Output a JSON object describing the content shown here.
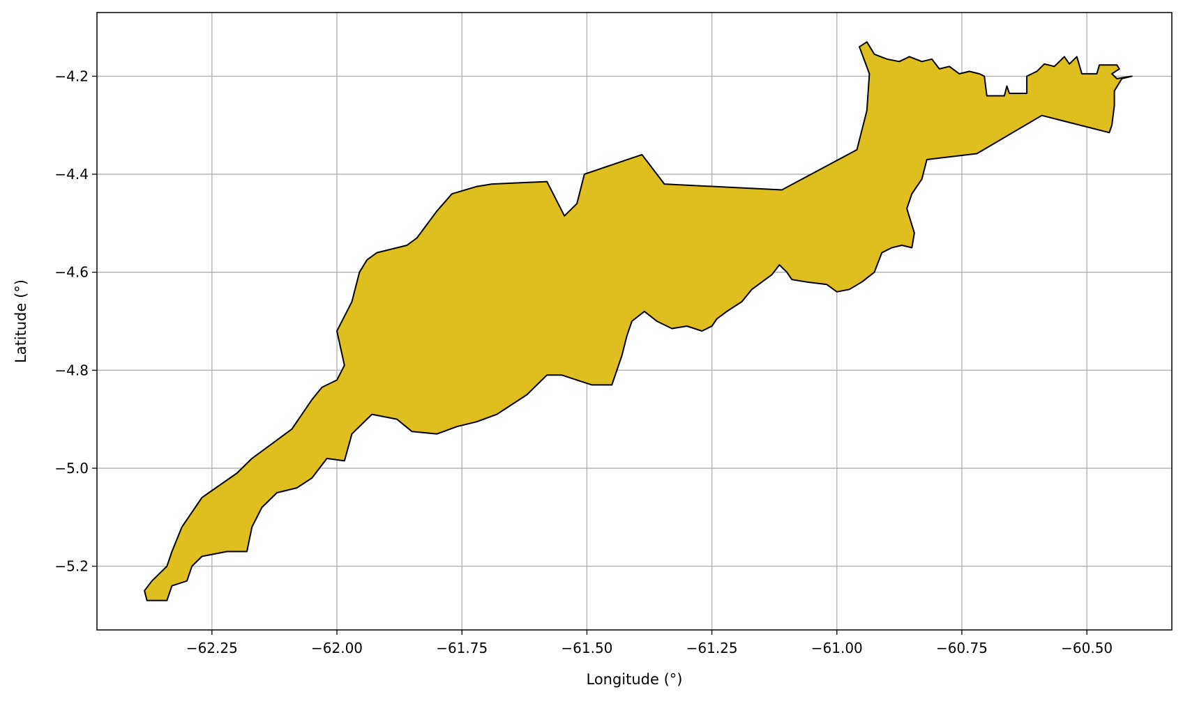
{
  "chart_data": {
    "type": "map",
    "xlabel": "Longitude (°)",
    "ylabel": "Latitude (°)",
    "xlim": [
      -62.48,
      -60.33
    ],
    "ylim": [
      -5.33,
      -4.07
    ],
    "grid": true,
    "colors": {
      "fill": "#dfbe20",
      "edge": "#000000",
      "grid": "#b0b0b0"
    },
    "x_ticks": [
      {
        "value": -62.25,
        "label": "−62.25"
      },
      {
        "value": -62.0,
        "label": "−62.00"
      },
      {
        "value": -61.75,
        "label": "−61.75"
      },
      {
        "value": -61.5,
        "label": "−61.50"
      },
      {
        "value": -61.25,
        "label": "−61.25"
      },
      {
        "value": -61.0,
        "label": "−61.00"
      },
      {
        "value": -60.75,
        "label": "−60.75"
      },
      {
        "value": -60.5,
        "label": "−60.50"
      }
    ],
    "y_ticks": [
      {
        "value": -4.2,
        "label": "−4.2"
      },
      {
        "value": -4.4,
        "label": "−4.4"
      },
      {
        "value": -4.6,
        "label": "−4.6"
      },
      {
        "value": -4.8,
        "label": "−4.8"
      },
      {
        "value": -5.0,
        "label": "−5.0"
      },
      {
        "value": -5.2,
        "label": "−5.2"
      }
    ],
    "polygon": [
      [
        -62.34,
        -5.27
      ],
      [
        -62.38,
        -5.27
      ],
      [
        -62.385,
        -5.25
      ],
      [
        -62.37,
        -5.23
      ],
      [
        -62.34,
        -5.2
      ],
      [
        -62.33,
        -5.17
      ],
      [
        -62.31,
        -5.12
      ],
      [
        -62.27,
        -5.06
      ],
      [
        -62.2,
        -5.01
      ],
      [
        -62.17,
        -4.98
      ],
      [
        -62.13,
        -4.95
      ],
      [
        -62.09,
        -4.92
      ],
      [
        -62.05,
        -4.86
      ],
      [
        -62.03,
        -4.835
      ],
      [
        -62.0,
        -4.82
      ],
      [
        -61.985,
        -4.79
      ],
      [
        -62.0,
        -4.72
      ],
      [
        -61.97,
        -4.66
      ],
      [
        -61.955,
        -4.6
      ],
      [
        -61.94,
        -4.575
      ],
      [
        -61.92,
        -4.56
      ],
      [
        -61.86,
        -4.545
      ],
      [
        -61.84,
        -4.53
      ],
      [
        -61.8,
        -4.475
      ],
      [
        -61.77,
        -4.44
      ],
      [
        -61.72,
        -4.425
      ],
      [
        -61.69,
        -4.42
      ],
      [
        -61.58,
        -4.415
      ],
      [
        -61.545,
        -4.485
      ],
      [
        -61.52,
        -4.46
      ],
      [
        -61.505,
        -4.4
      ],
      [
        -61.39,
        -4.36
      ],
      [
        -61.345,
        -4.42
      ],
      [
        -61.11,
        -4.432
      ],
      [
        -60.96,
        -4.35
      ],
      [
        -60.94,
        -4.27
      ],
      [
        -60.935,
        -4.195
      ],
      [
        -60.955,
        -4.14
      ],
      [
        -60.94,
        -4.13
      ],
      [
        -60.925,
        -4.155
      ],
      [
        -60.9,
        -4.165
      ],
      [
        -60.875,
        -4.17
      ],
      [
        -60.855,
        -4.16
      ],
      [
        -60.83,
        -4.17
      ],
      [
        -60.81,
        -4.165
      ],
      [
        -60.795,
        -4.185
      ],
      [
        -60.775,
        -4.18
      ],
      [
        -60.755,
        -4.195
      ],
      [
        -60.735,
        -4.19
      ],
      [
        -60.715,
        -4.195
      ],
      [
        -60.705,
        -4.2
      ],
      [
        -60.7,
        -4.24
      ],
      [
        -60.665,
        -4.24
      ],
      [
        -60.66,
        -4.22
      ],
      [
        -60.655,
        -4.235
      ],
      [
        -60.62,
        -4.235
      ],
      [
        -60.62,
        -4.2
      ],
      [
        -60.6,
        -4.19
      ],
      [
        -60.585,
        -4.175
      ],
      [
        -60.565,
        -4.18
      ],
      [
        -60.545,
        -4.16
      ],
      [
        -60.535,
        -4.175
      ],
      [
        -60.52,
        -4.16
      ],
      [
        -60.51,
        -4.195
      ],
      [
        -60.48,
        -4.195
      ],
      [
        -60.475,
        -4.177
      ],
      [
        -60.44,
        -4.177
      ],
      [
        -60.435,
        -4.185
      ],
      [
        -60.45,
        -4.195
      ],
      [
        -60.44,
        -4.205
      ],
      [
        -60.41,
        -4.2
      ],
      [
        -60.43,
        -4.205
      ],
      [
        -60.445,
        -4.23
      ],
      [
        -60.445,
        -4.26
      ],
      [
        -60.45,
        -4.3
      ],
      [
        -60.455,
        -4.315
      ],
      [
        -60.59,
        -4.28
      ],
      [
        -60.72,
        -4.358
      ],
      [
        -60.82,
        -4.37
      ],
      [
        -60.83,
        -4.41
      ],
      [
        -60.85,
        -4.44
      ],
      [
        -60.86,
        -4.47
      ],
      [
        -60.845,
        -4.52
      ],
      [
        -60.85,
        -4.55
      ],
      [
        -60.87,
        -4.545
      ],
      [
        -60.89,
        -4.55
      ],
      [
        -60.91,
        -4.56
      ],
      [
        -60.925,
        -4.6
      ],
      [
        -60.95,
        -4.62
      ],
      [
        -60.975,
        -4.635
      ],
      [
        -61.0,
        -4.64
      ],
      [
        -61.02,
        -4.625
      ],
      [
        -61.06,
        -4.62
      ],
      [
        -61.09,
        -4.615
      ],
      [
        -61.1,
        -4.6
      ],
      [
        -61.115,
        -4.585
      ],
      [
        -61.13,
        -4.605
      ],
      [
        -61.15,
        -4.62
      ],
      [
        -61.17,
        -4.635
      ],
      [
        -61.19,
        -4.66
      ],
      [
        -61.22,
        -4.68
      ],
      [
        -61.24,
        -4.695
      ],
      [
        -61.25,
        -4.71
      ],
      [
        -61.27,
        -4.72
      ],
      [
        -61.3,
        -4.71
      ],
      [
        -61.33,
        -4.715
      ],
      [
        -61.36,
        -4.7
      ],
      [
        -61.385,
        -4.68
      ],
      [
        -61.41,
        -4.7
      ],
      [
        -61.42,
        -4.73
      ],
      [
        -61.43,
        -4.77
      ],
      [
        -61.44,
        -4.8
      ],
      [
        -61.45,
        -4.83
      ],
      [
        -61.47,
        -4.83
      ],
      [
        -61.49,
        -4.83
      ],
      [
        -61.52,
        -4.82
      ],
      [
        -61.55,
        -4.81
      ],
      [
        -61.58,
        -4.81
      ],
      [
        -61.6,
        -4.83
      ],
      [
        -61.62,
        -4.85
      ],
      [
        -61.65,
        -4.87
      ],
      [
        -61.68,
        -4.89
      ],
      [
        -61.72,
        -4.905
      ],
      [
        -61.76,
        -4.915
      ],
      [
        -61.8,
        -4.93
      ],
      [
        -61.85,
        -4.925
      ],
      [
        -61.88,
        -4.9
      ],
      [
        -61.93,
        -4.89
      ],
      [
        -61.97,
        -4.93
      ],
      [
        -61.985,
        -4.985
      ],
      [
        -62.02,
        -4.98
      ],
      [
        -62.05,
        -5.02
      ],
      [
        -62.08,
        -5.04
      ],
      [
        -62.12,
        -5.05
      ],
      [
        -62.15,
        -5.08
      ],
      [
        -62.17,
        -5.12
      ],
      [
        -62.18,
        -5.17
      ],
      [
        -62.22,
        -5.17
      ],
      [
        -62.27,
        -5.18
      ],
      [
        -62.29,
        -5.2
      ],
      [
        -62.3,
        -5.23
      ],
      [
        -62.33,
        -5.24
      ],
      [
        -62.34,
        -5.27
      ]
    ]
  }
}
